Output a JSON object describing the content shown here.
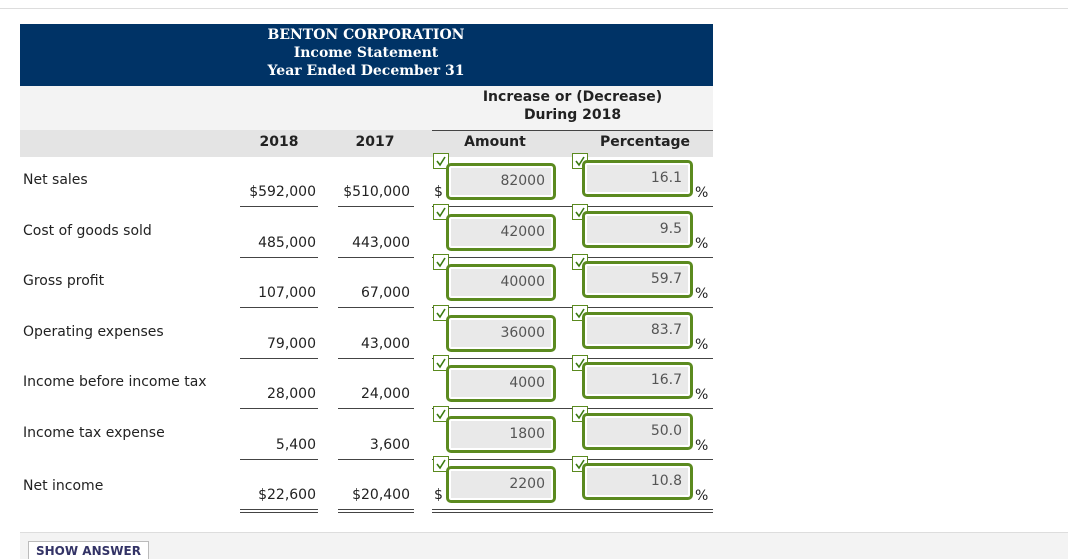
{
  "header": {
    "title": "BENTON CORPORATION",
    "subtitle": "Income Statement",
    "period": "Year Ended December 31"
  },
  "table": {
    "group_header": [
      "Increase or (Decrease)",
      "During 2018"
    ],
    "columns": [
      "2018",
      "2017",
      "Amount",
      "Percentage"
    ],
    "percent_symbol": "%",
    "rows": [
      {
        "label": "Net sales",
        "y2018": "$592,000",
        "y2017": "$510,000",
        "amount_symbol": "$",
        "amount": "82000",
        "percentage": "16.1"
      },
      {
        "label": "Cost of goods sold",
        "y2018": "485,000",
        "y2017": "443,000",
        "amount": "42000",
        "percentage": "9.5"
      },
      {
        "label": "Gross profit",
        "y2018": "107,000",
        "y2017": "67,000",
        "amount": "40000",
        "percentage": "59.7"
      },
      {
        "label": "Operating expenses",
        "y2018": "79,000",
        "y2017": "43,000",
        "amount": "36000",
        "percentage": "83.7"
      },
      {
        "label": "Income before income tax",
        "y2018": "28,000",
        "y2017": "24,000",
        "amount": "4000",
        "percentage": "16.7"
      },
      {
        "label": "Income tax expense",
        "y2018": "5,400",
        "y2017": "3,600",
        "amount": "1800",
        "percentage": "50.0"
      },
      {
        "label": "Net income",
        "y2018": "$22,600",
        "y2017": "$20,400",
        "amount_symbol": "$",
        "amount": "2200",
        "percentage": "10.8"
      }
    ]
  },
  "button": "SHOW ANSWER"
}
